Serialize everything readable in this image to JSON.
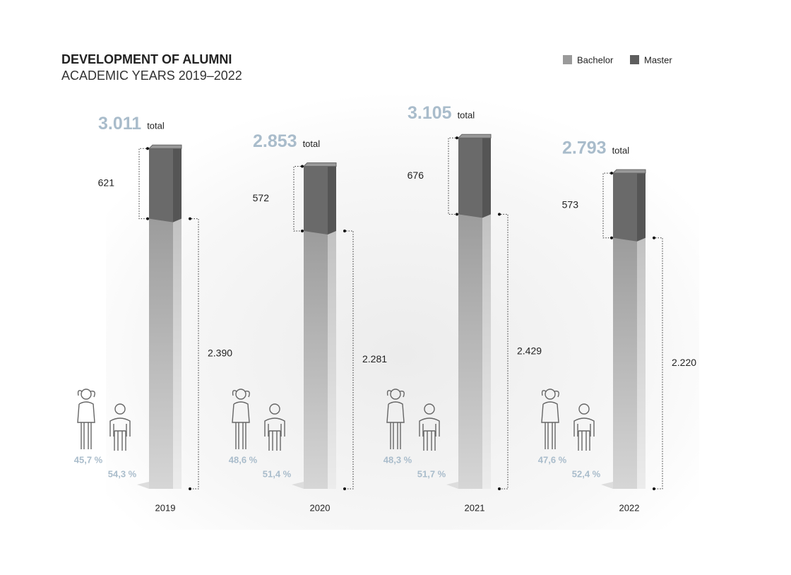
{
  "chart_data": {
    "type": "bar",
    "stacked": true,
    "title": "DEVELOPMENT OF ALUMNI",
    "subtitle": "ACADEMIC YEARS 2019–2022",
    "categories": [
      "2019",
      "2020",
      "2021",
      "2022"
    ],
    "series": [
      {
        "name": "Bachelor",
        "color": "#9a9a9a",
        "values": [
          2390,
          2281,
          2429,
          2220
        ],
        "value_labels": [
          "2.390",
          "2.281",
          "2.429",
          "2.220"
        ]
      },
      {
        "name": "Master",
        "color": "#5e5e5e",
        "values": [
          621,
          572,
          676,
          573
        ],
        "value_labels": [
          "621",
          "572",
          "676",
          "573"
        ]
      }
    ],
    "totals": {
      "label": "total",
      "values": [
        3011,
        2853,
        3105,
        2793
      ],
      "value_labels": [
        "3.011",
        "2.853",
        "3.105",
        "2.793"
      ]
    },
    "female_share": {
      "values": [
        45.7,
        48.6,
        48.3,
        47.6
      ],
      "value_labels": [
        "45,7 %",
        "48,6 %",
        "48,3 %",
        "47,6 %"
      ]
    },
    "male_share": {
      "values": [
        54.3,
        51.4,
        51.7,
        52.4
      ],
      "value_labels": [
        "54,3 %",
        "51,4 %",
        "51,7 %",
        "52,4 %"
      ]
    },
    "legend": "top-right"
  }
}
